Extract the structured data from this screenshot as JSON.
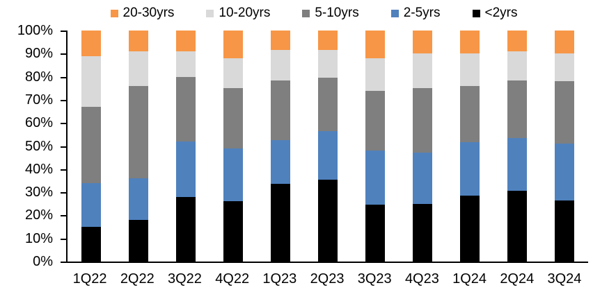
{
  "chart_data": {
    "type": "bar",
    "variant": "stacked-100-percent",
    "title": "",
    "xlabel": "",
    "ylabel": "",
    "grid": false,
    "categories": [
      "1Q22",
      "2Q22",
      "3Q22",
      "4Q22",
      "1Q23",
      "2Q23",
      "3Q23",
      "4Q23",
      "1Q24",
      "2Q24",
      "3Q24"
    ],
    "series": [
      {
        "name": "<2yrs",
        "color": "#000000",
        "values": [
          15,
          18,
          28,
          26,
          33.5,
          35.5,
          24.5,
          25,
          28.5,
          30.5,
          26.5
        ]
      },
      {
        "name": "2-5yrs",
        "color": "#4F81BD",
        "values": [
          19,
          18,
          24,
          23,
          19,
          21,
          23.5,
          22,
          23,
          23,
          24.5
        ]
      },
      {
        "name": "5-10yrs",
        "color": "#7F7F7F",
        "values": [
          33,
          40,
          28,
          26,
          26,
          23,
          26,
          28,
          24.5,
          25,
          27
        ]
      },
      {
        "name": "10-20yrs",
        "color": "#D9D9D9",
        "values": [
          22,
          15,
          11,
          13,
          13,
          12,
          14,
          15,
          14,
          12.5,
          12
        ]
      },
      {
        "name": "20-30yrs",
        "color": "#F79646",
        "values": [
          11,
          9,
          9,
          12,
          8.5,
          8.5,
          12,
          10,
          10,
          9,
          10
        ]
      }
    ],
    "legend": {
      "position": "top",
      "items": [
        {
          "label": "20-30yrs",
          "color": "#F79646"
        },
        {
          "label": "10-20yrs",
          "color": "#D9D9D9"
        },
        {
          "label": "5-10yrs",
          "color": "#7F7F7F"
        },
        {
          "label": "2-5yrs",
          "color": "#4F81BD"
        },
        {
          "label": "<2yrs",
          "color": "#000000"
        }
      ]
    },
    "y_axis": {
      "min": 0,
      "max": 100,
      "step": 10,
      "tick_labels": [
        "0%",
        "10%",
        "20%",
        "30%",
        "40%",
        "50%",
        "60%",
        "70%",
        "80%",
        "90%",
        "100%"
      ]
    }
  }
}
